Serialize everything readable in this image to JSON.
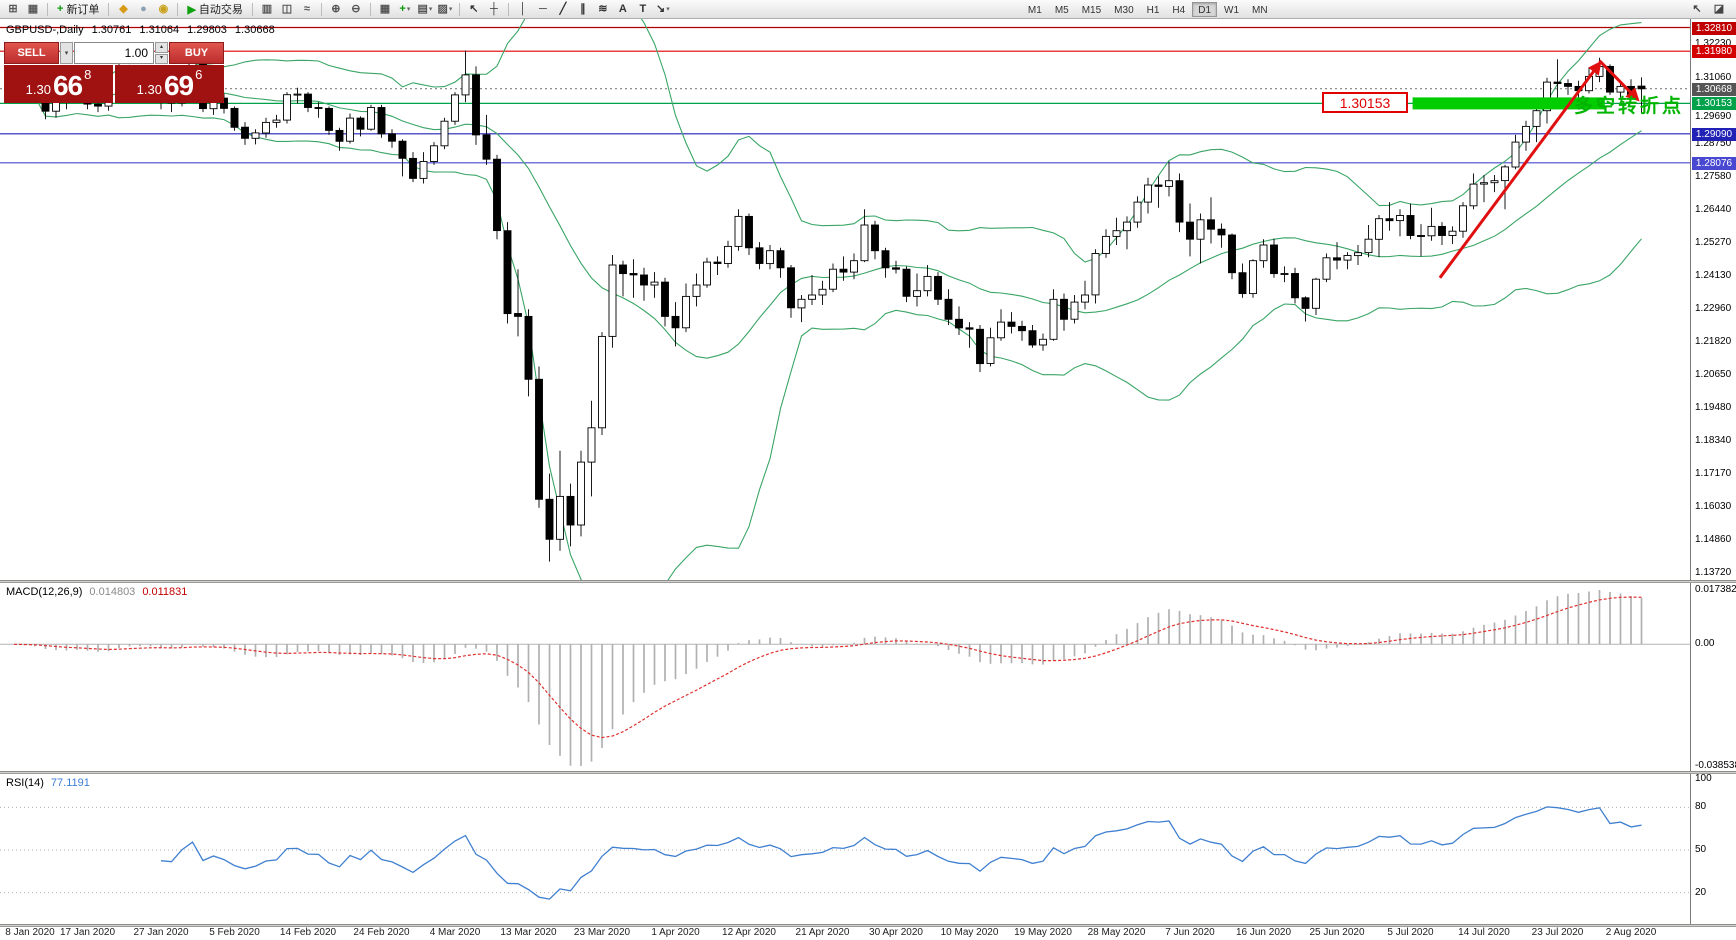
{
  "toolbar": {
    "groups": [
      {
        "items": [
          {
            "name": "new-chart",
            "glyph": "⊞",
            "color": "#5a5a5a"
          },
          {
            "name": "chart-profiles",
            "glyph": "▦",
            "color": "#5a5a5a"
          }
        ]
      },
      {
        "items": [
          {
            "name": "new-order",
            "glyph": "+",
            "color": "#0c9a0c",
            "label": "新订单"
          }
        ]
      },
      {
        "items": [
          {
            "name": "alerts",
            "glyph": "◆",
            "color": "#d89b18"
          },
          {
            "name": "search",
            "glyph": "●",
            "color": "#8aa0b4"
          },
          {
            "name": "community",
            "glyph": "◉",
            "color": "#caa21d"
          }
        ]
      },
      {
        "items": [
          {
            "name": "autotrading",
            "glyph": "▶",
            "color": "#0fa10f",
            "label": "自动交易"
          }
        ]
      },
      {
        "items": [
          {
            "name": "bar-chart",
            "glyph": "▥",
            "color": "#555555"
          },
          {
            "name": "candlestick-chart",
            "glyph": "◫",
            "color": "#555555"
          },
          {
            "name": "line-chart",
            "glyph": "≈",
            "color": "#555555"
          }
        ]
      },
      {
        "items": [
          {
            "name": "zoom-in",
            "glyph": "⊕",
            "color": "#555555"
          },
          {
            "name": "zoom-out",
            "glyph": "⊖",
            "color": "#555555"
          }
        ]
      },
      {
        "items": [
          {
            "name": "tile-windows",
            "glyph": "▦",
            "color": "#555555"
          },
          {
            "name": "indicators",
            "glyph": "+",
            "color": "#0c9a0c",
            "caret": true
          },
          {
            "name": "periods",
            "glyph": "▤",
            "color": "#555555",
            "caret": true
          },
          {
            "name": "templates",
            "glyph": "▨",
            "color": "#555555",
            "caret": true
          }
        ]
      },
      {
        "items": [
          {
            "name": "cursor",
            "glyph": "↖",
            "color": "#333333"
          },
          {
            "name": "crosshair",
            "glyph": "┼",
            "color": "#333333"
          }
        ]
      },
      {
        "items": [
          {
            "name": "vertical-line",
            "glyph": "│",
            "color": "#333333"
          },
          {
            "name": "horizontal-line",
            "glyph": "─",
            "color": "#333333"
          },
          {
            "name": "trendline",
            "glyph": "╱",
            "color": "#333333"
          },
          {
            "name": "equidistant-channel",
            "glyph": "∥",
            "color": "#333333"
          },
          {
            "name": "fibonacci",
            "glyph": "≋",
            "color": "#333333"
          },
          {
            "name": "text",
            "glyph": "A",
            "color": "#333333"
          },
          {
            "name": "text-label",
            "glyph": "T",
            "color": "#333333"
          },
          {
            "name": "arrows-tool",
            "glyph": "↘",
            "color": "#333333",
            "caret": true
          }
        ]
      }
    ],
    "timeframes": [
      "M1",
      "M5",
      "M15",
      "M30",
      "H1",
      "H4",
      "D1",
      "W1",
      "MN"
    ],
    "active_timeframe": "D1",
    "right_icons": [
      {
        "name": "pointer",
        "glyph": "↖",
        "color": "#444444"
      },
      {
        "name": "docking",
        "glyph": "◪",
        "color": "#444444"
      }
    ]
  },
  "chart_header": {
    "symbol": "GBPUSD-,Daily",
    "open": "1.30761",
    "high": "1.31064",
    "low": "1.29803",
    "close": "1.30668"
  },
  "trade_panel": {
    "sell_label": "SELL",
    "buy_label": "BUY",
    "volume": "1.00",
    "sell_price_small": "1.30",
    "sell_price_big": "66",
    "sell_price_sup": "8",
    "buy_price_small": "1.30",
    "buy_price_big": "69",
    "buy_price_sup": "6"
  },
  "annotations": {
    "price_label": "1.30153",
    "turning_point_text": "多空转折点"
  },
  "macd_panel": {
    "title": "MACD(12,26,9)",
    "value_main": "0.014803",
    "value_signal": "0.011831"
  },
  "rsi_panel": {
    "title": "RSI(14)",
    "value": "77.1191"
  },
  "colors": {
    "bull": "#ffffff",
    "bear": "#000000",
    "bollinger": "#3aa566",
    "macd_hist": "#b0b0b0",
    "macd_signal": "#e03030",
    "rsi_line": "#4080d0",
    "arrow": "#e01010",
    "highlight": "#00cc00"
  },
  "chart_data": {
    "type": "candlestick",
    "symbol": "GBPUSD",
    "timeframe": "Daily",
    "price_range": [
      1.1372,
      1.334
    ],
    "indicators": {
      "bollinger_period": 20,
      "bollinger_dev": 2,
      "macd": "12,26,9",
      "rsi_period": 14
    },
    "ohlc": [
      [
        1.3118,
        1.3135,
        1.308,
        1.3104
      ],
      [
        1.3104,
        1.3113,
        1.3052,
        1.3068
      ],
      [
        1.3068,
        1.3085,
        1.304,
        1.3059
      ],
      [
        1.3059,
        1.3062,
        1.296,
        1.2988
      ],
      [
        1.2988,
        1.3035,
        1.2965,
        1.3021
      ],
      [
        1.3021,
        1.305,
        1.2995,
        1.304
      ],
      [
        1.304,
        1.309,
        1.302,
        1.3075
      ],
      [
        1.3075,
        1.3082,
        1.2995,
        1.3013
      ],
      [
        1.3013,
        1.3025,
        1.2985,
        1.3006
      ],
      [
        1.3006,
        1.306,
        1.299,
        1.3047
      ],
      [
        1.3047,
        1.3153,
        1.3035,
        1.3141
      ],
      [
        1.3141,
        1.315,
        1.3085,
        1.3116
      ],
      [
        1.3116,
        1.3135,
        1.305,
        1.3073
      ],
      [
        1.3073,
        1.3085,
        1.304,
        1.3058
      ],
      [
        1.3058,
        1.307,
        1.2995,
        1.3025
      ],
      [
        1.3025,
        1.3045,
        1.2985,
        1.3017
      ],
      [
        1.3017,
        1.311,
        1.3005,
        1.3095
      ],
      [
        1.3095,
        1.3165,
        1.308,
        1.3155
      ],
      [
        1.3155,
        1.316,
        1.2985,
        1.2997
      ],
      [
        1.2997,
        1.3045,
        1.2975,
        1.3034
      ],
      [
        1.3034,
        1.305,
        1.298,
        1.2998
      ],
      [
        1.2998,
        1.3005,
        1.292,
        1.2932
      ],
      [
        1.2932,
        1.295,
        1.287,
        1.2893
      ],
      [
        1.2893,
        1.2925,
        1.2872,
        1.2912
      ],
      [
        1.2912,
        1.2965,
        1.2895,
        1.2949
      ],
      [
        1.2949,
        1.2975,
        1.293,
        1.2957
      ],
      [
        1.2957,
        1.3055,
        1.2945,
        1.3046
      ],
      [
        1.3046,
        1.307,
        1.3015,
        1.3048
      ],
      [
        1.3048,
        1.3055,
        1.2985,
        1.3001
      ],
      [
        1.3001,
        1.302,
        1.2965,
        1.2998
      ],
      [
        1.2998,
        1.3005,
        1.2905,
        1.2921
      ],
      [
        1.2921,
        1.293,
        1.285,
        1.2883
      ],
      [
        1.2883,
        1.298,
        1.2875,
        1.2964
      ],
      [
        1.2964,
        1.297,
        1.29,
        1.2925
      ],
      [
        1.2925,
        1.301,
        1.292,
        1.3001
      ],
      [
        1.3001,
        1.301,
        1.2895,
        1.2909
      ],
      [
        1.2909,
        1.2925,
        1.286,
        1.2883
      ],
      [
        1.2883,
        1.289,
        1.276,
        1.2823
      ],
      [
        1.2823,
        1.2845,
        1.274,
        1.2753
      ],
      [
        1.2753,
        1.2845,
        1.2735,
        1.2812
      ],
      [
        1.2812,
        1.288,
        1.28,
        1.2867
      ],
      [
        1.2867,
        1.2965,
        1.2855,
        1.2953
      ],
      [
        1.2953,
        1.3055,
        1.294,
        1.3045
      ],
      [
        1.3045,
        1.32,
        1.302,
        1.3115
      ],
      [
        1.3115,
        1.3145,
        1.287,
        1.2905
      ],
      [
        1.2905,
        1.2975,
        1.28,
        1.282
      ],
      [
        1.282,
        1.2835,
        1.254,
        1.257
      ],
      [
        1.257,
        1.26,
        1.2245,
        1.228
      ],
      [
        1.228,
        1.2435,
        1.22,
        1.227
      ],
      [
        1.227,
        1.2295,
        1.199,
        1.205
      ],
      [
        1.205,
        1.2095,
        1.16,
        1.163
      ],
      [
        1.163,
        1.172,
        1.1412,
        1.149
      ],
      [
        1.149,
        1.18,
        1.145,
        1.164
      ],
      [
        1.164,
        1.1685,
        1.1465,
        1.154
      ],
      [
        1.154,
        1.18,
        1.15,
        1.176
      ],
      [
        1.176,
        1.1975,
        1.164,
        1.188
      ],
      [
        1.188,
        1.2215,
        1.1855,
        1.22
      ],
      [
        1.22,
        1.2485,
        1.216,
        1.245
      ],
      [
        1.245,
        1.2465,
        1.234,
        1.242
      ],
      [
        1.242,
        1.247,
        1.2335,
        1.2415
      ],
      [
        1.2415,
        1.244,
        1.2325,
        1.238
      ],
      [
        1.238,
        1.2425,
        1.2335,
        1.239
      ],
      [
        1.239,
        1.2405,
        1.2235,
        1.227
      ],
      [
        1.227,
        1.232,
        1.2165,
        1.223
      ],
      [
        1.223,
        1.2385,
        1.2215,
        1.234
      ],
      [
        1.234,
        1.242,
        1.2305,
        1.238
      ],
      [
        1.238,
        1.2475,
        1.237,
        1.246
      ],
      [
        1.246,
        1.248,
        1.2415,
        1.2455
      ],
      [
        1.2455,
        1.2535,
        1.244,
        1.2515
      ],
      [
        1.2515,
        1.2645,
        1.25,
        1.262
      ],
      [
        1.262,
        1.263,
        1.2485,
        1.251
      ],
      [
        1.251,
        1.253,
        1.2435,
        1.2455
      ],
      [
        1.2455,
        1.252,
        1.2435,
        1.25
      ],
      [
        1.25,
        1.251,
        1.2405,
        1.244
      ],
      [
        1.244,
        1.245,
        1.2265,
        1.23
      ],
      [
        1.23,
        1.2345,
        1.225,
        1.233
      ],
      [
        1.233,
        1.2415,
        1.231,
        1.2345
      ],
      [
        1.2345,
        1.2395,
        1.231,
        1.2365
      ],
      [
        1.2365,
        1.2455,
        1.2355,
        1.2435
      ],
      [
        1.2435,
        1.248,
        1.2395,
        1.2425
      ],
      [
        1.2425,
        1.249,
        1.24,
        1.2465
      ],
      [
        1.2465,
        1.2645,
        1.246,
        1.259
      ],
      [
        1.259,
        1.2605,
        1.247,
        1.25
      ],
      [
        1.25,
        1.251,
        1.2405,
        1.244
      ],
      [
        1.244,
        1.2465,
        1.242,
        1.2435
      ],
      [
        1.2435,
        1.2445,
        1.232,
        1.234
      ],
      [
        1.234,
        1.242,
        1.2305,
        1.236
      ],
      [
        1.236,
        1.245,
        1.234,
        1.241
      ],
      [
        1.241,
        1.2425,
        1.231,
        1.233
      ],
      [
        1.233,
        1.2365,
        1.224,
        1.226
      ],
      [
        1.226,
        1.2305,
        1.2205,
        1.223
      ],
      [
        1.223,
        1.225,
        1.216,
        1.2225
      ],
      [
        1.2225,
        1.224,
        1.2075,
        1.2105
      ],
      [
        1.2105,
        1.223,
        1.2095,
        1.2195
      ],
      [
        1.2195,
        1.2295,
        1.2185,
        1.225
      ],
      [
        1.225,
        1.2285,
        1.221,
        1.2235
      ],
      [
        1.2235,
        1.2255,
        1.2185,
        1.222
      ],
      [
        1.222,
        1.224,
        1.216,
        1.217
      ],
      [
        1.217,
        1.221,
        1.215,
        1.219
      ],
      [
        1.219,
        1.2365,
        1.2185,
        1.233
      ],
      [
        1.233,
        1.235,
        1.222,
        1.226
      ],
      [
        1.226,
        1.2345,
        1.2245,
        1.232
      ],
      [
        1.232,
        1.2395,
        1.2295,
        1.2345
      ],
      [
        1.2345,
        1.2505,
        1.2315,
        1.249
      ],
      [
        1.249,
        1.2575,
        1.2475,
        1.255
      ],
      [
        1.255,
        1.2615,
        1.252,
        1.257
      ],
      [
        1.257,
        1.262,
        1.2505,
        1.26
      ],
      [
        1.26,
        1.269,
        1.258,
        1.267
      ],
      [
        1.267,
        1.2755,
        1.263,
        1.273
      ],
      [
        1.273,
        1.276,
        1.265,
        1.2725
      ],
      [
        1.2725,
        1.2812,
        1.269,
        1.2745
      ],
      [
        1.2745,
        1.277,
        1.2565,
        1.26
      ],
      [
        1.26,
        1.2665,
        1.248,
        1.254
      ],
      [
        1.254,
        1.263,
        1.2455,
        1.2608
      ],
      [
        1.2608,
        1.2687,
        1.2525,
        1.2575
      ],
      [
        1.2575,
        1.2595,
        1.251,
        1.2555
      ],
      [
        1.2555,
        1.256,
        1.24,
        1.2423
      ],
      [
        1.2423,
        1.2455,
        1.2335,
        1.235
      ],
      [
        1.235,
        1.247,
        1.2335,
        1.2465
      ],
      [
        1.2465,
        1.254,
        1.244,
        1.252
      ],
      [
        1.252,
        1.2542,
        1.2405,
        1.242
      ],
      [
        1.242,
        1.2445,
        1.239,
        1.242
      ],
      [
        1.242,
        1.244,
        1.2315,
        1.2335
      ],
      [
        1.2335,
        1.234,
        1.2252,
        1.2298
      ],
      [
        1.2298,
        1.2405,
        1.2275,
        1.24
      ],
      [
        1.24,
        1.249,
        1.239,
        1.2475
      ],
      [
        1.2475,
        1.253,
        1.2435,
        1.2467
      ],
      [
        1.2467,
        1.2495,
        1.2435,
        1.2483
      ],
      [
        1.2483,
        1.252,
        1.245,
        1.2493
      ],
      [
        1.2493,
        1.259,
        1.2477,
        1.254
      ],
      [
        1.254,
        1.2625,
        1.2478,
        1.2612
      ],
      [
        1.2612,
        1.267,
        1.257,
        1.2605
      ],
      [
        1.2605,
        1.2645,
        1.255,
        1.2623
      ],
      [
        1.2623,
        1.2665,
        1.254,
        1.2553
      ],
      [
        1.2553,
        1.2593,
        1.248,
        1.2552
      ],
      [
        1.2552,
        1.265,
        1.2535,
        1.2585
      ],
      [
        1.2585,
        1.26,
        1.252,
        1.2553
      ],
      [
        1.2553,
        1.2585,
        1.2523,
        1.2568
      ],
      [
        1.2568,
        1.267,
        1.2545,
        1.2657
      ],
      [
        1.2657,
        1.277,
        1.2645,
        1.2733
      ],
      [
        1.2733,
        1.2765,
        1.267,
        1.2738
      ],
      [
        1.2738,
        1.2765,
        1.2705,
        1.2745
      ],
      [
        1.2745,
        1.28,
        1.2645,
        1.2793
      ],
      [
        1.2793,
        1.2905,
        1.2785,
        1.288
      ],
      [
        1.288,
        1.2955,
        1.285,
        1.2935
      ],
      [
        1.2935,
        1.3015,
        1.288,
        1.299
      ],
      [
        1.299,
        1.3105,
        1.2945,
        1.309
      ],
      [
        1.309,
        1.317,
        1.3004,
        1.3085
      ],
      [
        1.3085,
        1.31,
        1.3045,
        1.3075
      ],
      [
        1.3075,
        1.3095,
        1.301,
        1.306
      ],
      [
        1.306,
        1.314,
        1.305,
        1.311
      ],
      [
        1.311,
        1.3175,
        1.309,
        1.3145
      ],
      [
        1.3145,
        1.3152,
        1.3045,
        1.3055
      ],
      [
        1.3055,
        1.309,
        1.3035,
        1.3075
      ],
      [
        1.3075,
        1.31,
        1.304,
        1.3045
      ],
      [
        1.30761,
        1.31064,
        1.29803,
        1.30668
      ]
    ],
    "hlines": [
      {
        "price": 1.3281,
        "color": "#b00000",
        "style": "solid"
      },
      {
        "price": 1.3198,
        "color": "#e00000",
        "style": "solid"
      },
      {
        "price": 1.30668,
        "color": "#808080",
        "style": "dot"
      },
      {
        "price": 1.30153,
        "color": "#00a14b",
        "style": "solid"
      },
      {
        "price": 1.2909,
        "color": "#2121b5",
        "style": "solid"
      },
      {
        "price": 1.28076,
        "color": "#4848d0",
        "style": "solid"
      }
    ],
    "badges": [
      {
        "text": "1.32810",
        "color": "#c00000"
      },
      {
        "text": "1.31980",
        "color": "#d40000"
      },
      {
        "text": "1.30668",
        "color": "#555555"
      },
      {
        "text": "1.30153",
        "color": "#00a14b"
      },
      {
        "text": "1.29090",
        "color": "#2121b5"
      },
      {
        "text": "1.28076",
        "color": "#4848d0"
      }
    ],
    "price_axis_labels": [
      "1.32230",
      "1.31060",
      "1.29690",
      "1.28750",
      "1.27580",
      "1.26440",
      "1.25270",
      "1.24130",
      "1.22960",
      "1.21820",
      "1.20650",
      "1.19480",
      "1.18340",
      "1.17170",
      "1.16030",
      "1.14860",
      "1.13720"
    ],
    "highlight_rect": {
      "bar_start": 133.2,
      "bar_end": 151.5,
      "price": 1.30153
    },
    "arrows": [
      {
        "from_bar": 135.8,
        "from_price": 1.2405,
        "to_bar": 151,
        "to_price": 1.3155
      },
      {
        "from_bar": 151,
        "from_price": 1.3165,
        "to_bar": 154.6,
        "to_price": 1.303
      }
    ],
    "macd_axis": [
      "0.017382",
      "0.00",
      "-0.038538"
    ],
    "rsi_axis": [
      "100",
      "80",
      "50",
      "20"
    ],
    "x_axis_dates": [
      "8 Jan 2020",
      "17 Jan 2020",
      "27 Jan 2020",
      "5 Feb 2020",
      "14 Feb 2020",
      "24 Feb 2020",
      "4 Mar 2020",
      "13 Mar 2020",
      "23 Mar 2020",
      "1 Apr 2020",
      "12 Apr 2020",
      "21 Apr 2020",
      "30 Apr 2020",
      "10 May 2020",
      "19 May 2020",
      "28 May 2020",
      "7 Jun 2020",
      "16 Jun 2020",
      "25 Jun 2020",
      "5 Jul 2020",
      "14 Jul 2020",
      "23 Jul 2020",
      "2 Aug 2020"
    ]
  }
}
